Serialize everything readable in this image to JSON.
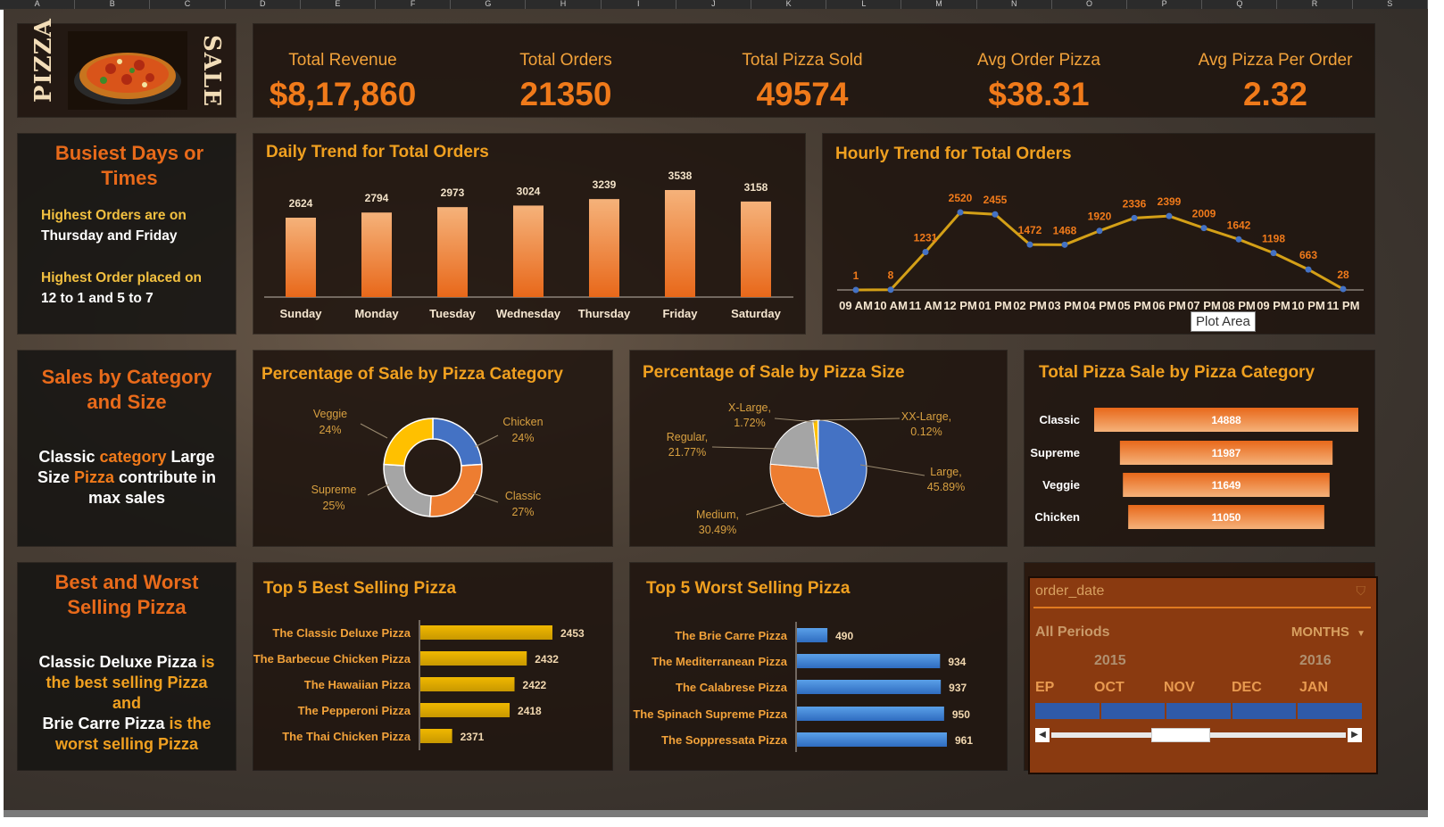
{
  "column_headers": [
    "A",
    "B",
    "C",
    "D",
    "E",
    "F",
    "G",
    "H",
    "I",
    "J",
    "K",
    "L",
    "M",
    "N",
    "O",
    "P",
    "Q",
    "R",
    "S"
  ],
  "logo": {
    "left_text": "PIZZA",
    "right_text": "SALE"
  },
  "kpis": [
    {
      "label": "Total Revenue",
      "value": "$8,17,860"
    },
    {
      "label": "Total Orders",
      "value": "21350"
    },
    {
      "label": "Total Pizza Sold",
      "value": "49574"
    },
    {
      "label": "Avg Order Pizza",
      "value": "$38.31"
    },
    {
      "label": "Avg Pizza Per Order",
      "value": "2.32"
    }
  ],
  "busiest": {
    "title": "Busiest Days or Times",
    "line1a": "Highest Orders are on",
    "line1b": "Thursday and Friday",
    "line2a": "Highest Order placed on",
    "line2b": "12 to 1 and 5 to 7"
  },
  "sales_cat_size": {
    "title": "Sales by Category and Size",
    "t1": "Classic",
    "t2": "category",
    "t3": "Large",
    "t4": "Size",
    "t5": "Pizza",
    "t6": "contribute in",
    "t7": "max sales"
  },
  "best_worst": {
    "title": "Best and Worst Selling Pizza",
    "t1": "Classic Deluxe Pizza",
    "t2": "is",
    "t3": "the best selling Pizza",
    "t4": "and",
    "t5": "Brie Carre Pizza",
    "t6": "is the",
    "t7": "worst selling Pizza"
  },
  "daily_trend": {
    "title": "Daily Trend for Total Orders",
    "chart_data": {
      "type": "bar",
      "categories": [
        "Sunday",
        "Monday",
        "Tuesday",
        "Wednesday",
        "Thursday",
        "Friday",
        "Saturday"
      ],
      "values": [
        2624,
        2794,
        2973,
        3024,
        3239,
        3538,
        3158
      ]
    }
  },
  "hourly_trend": {
    "title": "Hourly Trend for Total Orders",
    "tooltip": "Plot Area",
    "chart_data": {
      "type": "line",
      "categories": [
        "09 AM",
        "10 AM",
        "11 AM",
        "12 PM",
        "01 PM",
        "02 PM",
        "03 PM",
        "04 PM",
        "05 PM",
        "06 PM",
        "07 PM",
        "08 PM",
        "09 PM",
        "10 PM",
        "11 PM"
      ],
      "values": [
        1,
        8,
        1231,
        2520,
        2455,
        1472,
        1468,
        1920,
        2336,
        2399,
        2009,
        1642,
        1198,
        663,
        28
      ]
    }
  },
  "pct_category": {
    "title": "Percentage of Sale by Pizza Category",
    "chart_data": {
      "type": "pie",
      "donut": true,
      "slices": [
        {
          "name": "Chicken",
          "label": "24%",
          "value": 24,
          "color": "#4472c4"
        },
        {
          "name": "Classic",
          "label": "27%",
          "value": 27,
          "color": "#ed7d31"
        },
        {
          "name": "Supreme",
          "label": "25%",
          "value": 25,
          "color": "#a5a5a5"
        },
        {
          "name": "Veggie",
          "label": "24%",
          "value": 24,
          "color": "#ffc000"
        }
      ]
    }
  },
  "pct_size": {
    "title": "Percentage of Sale by Pizza Size",
    "chart_data": {
      "type": "pie",
      "slices": [
        {
          "name": "Large,",
          "label": "45.89%",
          "value": 45.89,
          "color": "#4472c4"
        },
        {
          "name": "Medium,",
          "label": "30.49%",
          "value": 30.49,
          "color": "#ed7d31"
        },
        {
          "name": "Regular,",
          "label": "21.77%",
          "value": 21.77,
          "color": "#a5a5a5"
        },
        {
          "name": "X-Large,",
          "label": "1.72%",
          "value": 1.72,
          "color": "#ffc000"
        },
        {
          "name": "XX-Large,",
          "label": "0.12%",
          "value": 0.12,
          "color": "#5b9bd5"
        }
      ]
    }
  },
  "total_by_category": {
    "title": "Total Pizza Sale by Pizza Category",
    "chart_data": {
      "type": "bar",
      "orientation": "horizontal",
      "categories": [
        "Classic",
        "Supreme",
        "Veggie",
        "Chicken"
      ],
      "values": [
        14888,
        11987,
        11649,
        11050
      ]
    }
  },
  "top5_best": {
    "title": "Top 5 Best Selling Pizza",
    "chart_data": {
      "type": "bar",
      "orientation": "horizontal",
      "categories": [
        "The Classic Deluxe Pizza",
        "The Barbecue Chicken Pizza",
        "The Hawaiian Pizza",
        "The Pepperoni Pizza",
        "The Thai Chicken Pizza"
      ],
      "values": [
        2453,
        2432,
        2422,
        2418,
        2371
      ]
    }
  },
  "top5_worst": {
    "title": "Top 5 Worst Selling Pizza",
    "chart_data": {
      "type": "bar",
      "orientation": "horizontal",
      "categories": [
        "The Brie Carre Pizza",
        "The Mediterranean Pizza",
        "The Calabrese Pizza",
        "The Spinach Supreme Pizza",
        "The Soppressata Pizza"
      ],
      "values": [
        490,
        934,
        937,
        950,
        961
      ]
    }
  },
  "slicer": {
    "title": "order_date",
    "all_periods": "All Periods",
    "level": "MONTHS",
    "year1": "2015",
    "year2": "2016",
    "months": [
      "EP",
      "OCT",
      "NOV",
      "DEC",
      "JAN"
    ]
  },
  "colors": {
    "accent_orange": "#f07a1a",
    "title_gold": "#f0a020",
    "best_bar": "#e0a800",
    "worst_bar": "#4a8fd8",
    "line": "#d4a017"
  }
}
